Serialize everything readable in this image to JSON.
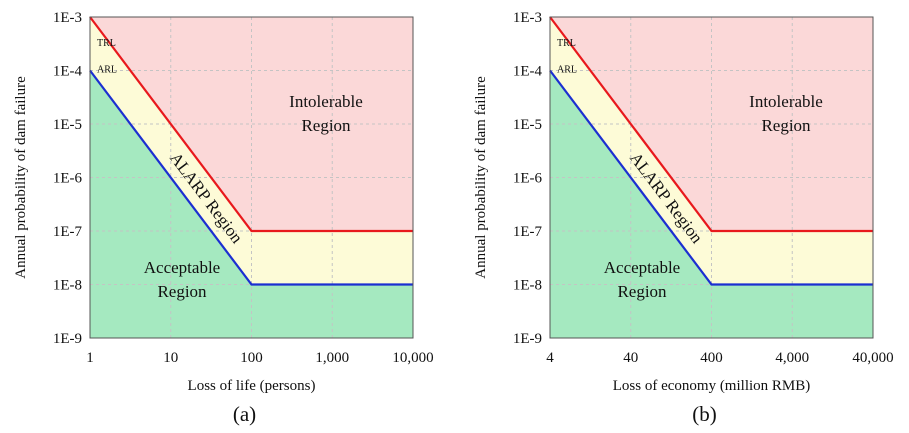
{
  "chart_data": [
    {
      "type": "area",
      "caption": "(a)",
      "xlabel": "Loss of life (persons)",
      "ylabel": "Annual probability of dam failure",
      "x_scale": "log",
      "y_scale": "log",
      "xlim": [
        1,
        10000
      ],
      "ylim": [
        1e-09,
        0.001
      ],
      "x_ticks": [
        1,
        10,
        100,
        1000,
        10000
      ],
      "x_tick_labels": [
        "1",
        "10",
        "100",
        "1,000",
        "10,000"
      ],
      "y_ticks": [
        1e-09,
        1e-08,
        1e-07,
        1e-06,
        1e-05,
        0.0001,
        0.001
      ],
      "y_tick_labels": [
        "1E-9",
        "1E-8",
        "1E-7",
        "1E-6",
        "1E-5",
        "1E-4",
        "1E-3"
      ],
      "grid": true,
      "series": [
        {
          "name": "TRL",
          "color": "#e8191d",
          "points": [
            [
              1,
              0.001
            ],
            [
              100,
              1e-07
            ],
            [
              10000,
              1e-07
            ]
          ]
        },
        {
          "name": "ARL",
          "color": "#1c2fd1",
          "points": [
            [
              1,
              0.0001
            ],
            [
              100,
              1e-08
            ],
            [
              10000,
              1e-08
            ]
          ]
        }
      ],
      "regions": {
        "intolerable": {
          "label_line1": "Intolerable",
          "label_line2": "Region",
          "color": "#fbd8d8"
        },
        "alarp": {
          "label": "ALARP Region",
          "color": "#fdfbd7"
        },
        "acceptable": {
          "label_line1": "Acceptable",
          "label_line2": "Region",
          "color": "#a5e9c0"
        }
      }
    },
    {
      "type": "area",
      "caption": "(b)",
      "xlabel": "Loss of economy (million RMB)",
      "ylabel": "Annual probability of dam failure",
      "x_scale": "log",
      "y_scale": "log",
      "xlim": [
        4,
        40000
      ],
      "ylim": [
        1e-09,
        0.001
      ],
      "x_ticks": [
        4,
        40,
        400,
        4000,
        40000
      ],
      "x_tick_labels": [
        "4",
        "40",
        "400",
        "4,000",
        "40,000"
      ],
      "y_ticks": [
        1e-09,
        1e-08,
        1e-07,
        1e-06,
        1e-05,
        0.0001,
        0.001
      ],
      "y_tick_labels": [
        "1E-9",
        "1E-8",
        "1E-7",
        "1E-6",
        "1E-5",
        "1E-4",
        "1E-3"
      ],
      "grid": true,
      "series": [
        {
          "name": "TRL",
          "color": "#e8191d",
          "points": [
            [
              4,
              0.001
            ],
            [
              400,
              1e-07
            ],
            [
              40000,
              1e-07
            ]
          ]
        },
        {
          "name": "ARL",
          "color": "#1c2fd1",
          "points": [
            [
              4,
              0.0001
            ],
            [
              400,
              1e-08
            ],
            [
              40000,
              1e-08
            ]
          ]
        }
      ],
      "regions": {
        "intolerable": {
          "label_line1": "Intolerable",
          "label_line2": "Region",
          "color": "#fbd8d8"
        },
        "alarp": {
          "label": "ALARP Region",
          "color": "#fdfbd7"
        },
        "acceptable": {
          "label_line1": "Acceptable",
          "label_line2": "Region",
          "color": "#a5e9c0"
        }
      }
    }
  ]
}
